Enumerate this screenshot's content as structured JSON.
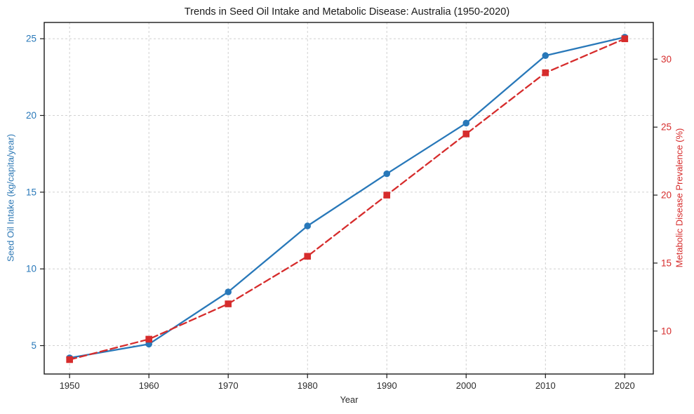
{
  "chart_data": {
    "type": "line",
    "title": "Trends in Seed Oil Intake and Metabolic Disease: Australia (1950-2020)",
    "xlabel": "Year",
    "x": [
      1950,
      1960,
      1970,
      1980,
      1990,
      2000,
      2010,
      2020
    ],
    "x_ticks": [
      1950,
      1960,
      1970,
      1980,
      1990,
      2000,
      2010,
      2020
    ],
    "xlim": [
      1946.8,
      2023.6
    ],
    "grid": true,
    "legend": "none",
    "series": [
      {
        "name": "Seed Oil Intake",
        "axis": "left",
        "ylabel": "Seed Oil Intake (kg/capita/year)",
        "color": "#2878b9",
        "marker": "circle",
        "line_style": "solid",
        "values": [
          4.2,
          5.1,
          8.5,
          12.8,
          16.2,
          19.5,
          23.9,
          25.1
        ],
        "ticks": [
          5,
          10,
          15,
          20,
          25
        ],
        "ylim": [
          3.15,
          26.06
        ]
      },
      {
        "name": "Metabolic Disease Prevalence",
        "axis": "right",
        "ylabel": "Metabolic Disease Prevalence (%)",
        "color": "#d62c2c",
        "marker": "square",
        "line_style": "dashed",
        "values": [
          7.9,
          9.4,
          12.0,
          15.5,
          20.0,
          24.5,
          29.0,
          31.5
        ],
        "ticks": [
          10,
          15,
          20,
          25,
          30
        ],
        "ylim": [
          6.84,
          32.7
        ]
      }
    ]
  },
  "colors": {
    "grid": "#cbcbcb",
    "spine": "#1a1a1a",
    "x_tick": "#2b2b2b",
    "background": "#ffffff"
  }
}
